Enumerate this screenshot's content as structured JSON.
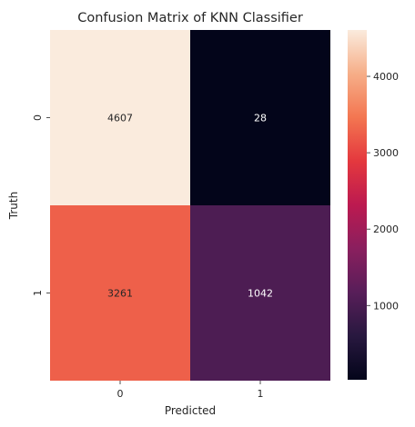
{
  "chart_data": {
    "type": "heatmap",
    "title": "Confusion Matrix of KNN Classifier",
    "xlabel": "Predicted",
    "ylabel": "Truth",
    "x_categories": [
      "0",
      "1"
    ],
    "y_categories": [
      "0",
      "1"
    ],
    "values": [
      [
        4607,
        28
      ],
      [
        3261,
        1042
      ]
    ],
    "colormap": "rocket",
    "colorbar": {
      "range": [
        28,
        4607
      ],
      "ticks": [
        1000,
        2000,
        3000,
        4000
      ],
      "tick_labels": [
        "1000",
        "2000",
        "3000",
        "4000"
      ]
    },
    "grid": false
  }
}
